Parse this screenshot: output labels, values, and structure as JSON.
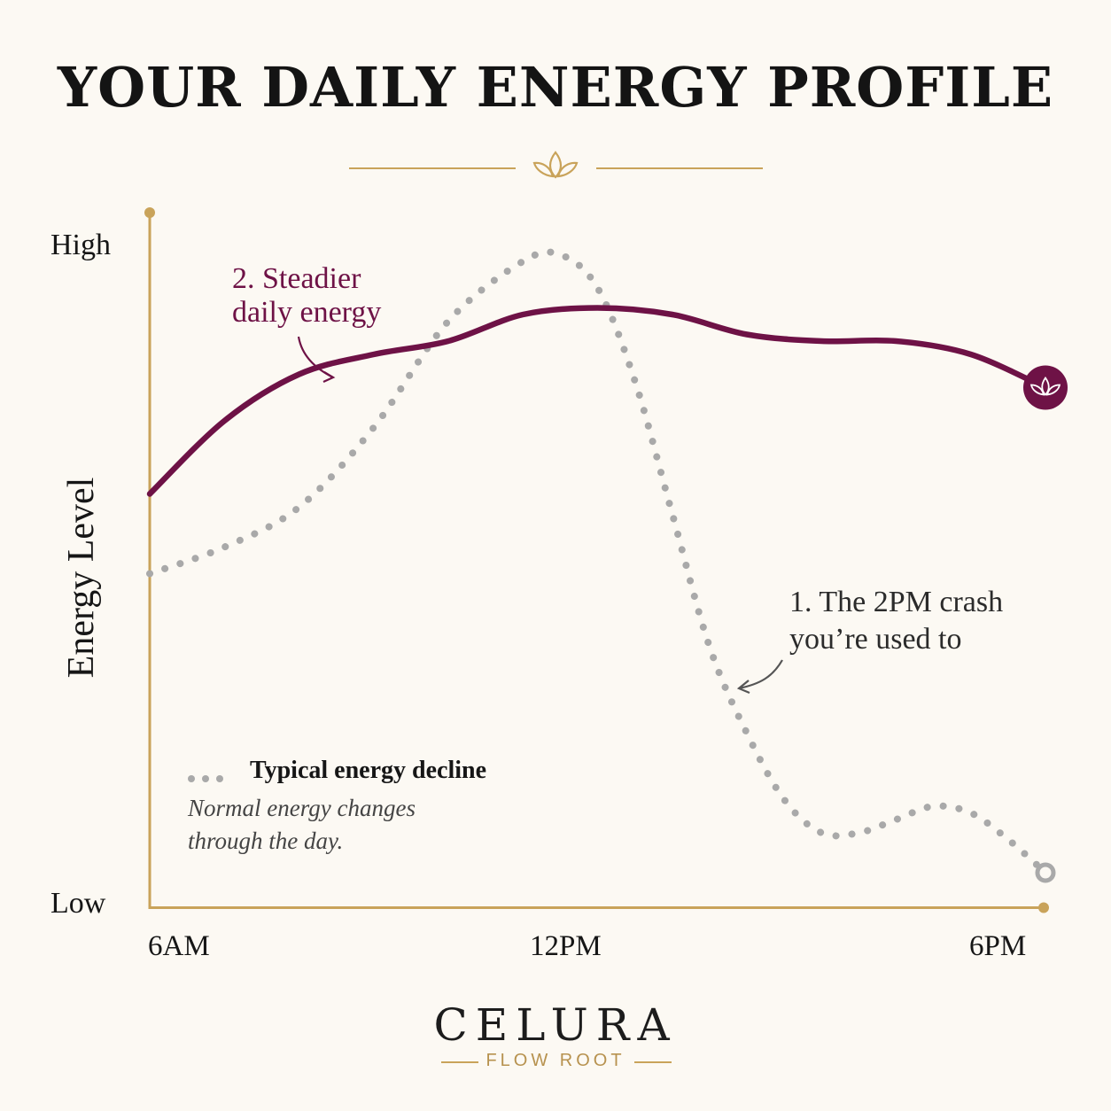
{
  "header": {
    "title": "YOUR DAILY ENERGY PROFILE",
    "ornament_icon": "lotus-icon"
  },
  "footer": {
    "brand": "CELURA",
    "sub_brand": "FLOW ROOT"
  },
  "colors": {
    "background": "#fcf9f3",
    "accent_gold": "#c9a35a",
    "steady_line": "#6e1246",
    "typical_line": "#a9a9a9",
    "text": "#161616"
  },
  "chart_data": {
    "type": "line",
    "title": "YOUR DAILY ENERGY PROFILE",
    "xlabel": "",
    "ylabel": "Energy Level",
    "x_ticks": [
      "6AM",
      "12PM",
      "6PM"
    ],
    "y_ticks": [
      "High",
      "Low"
    ],
    "xlim": [
      6,
      18
    ],
    "ylim": [
      0,
      100
    ],
    "grid": false,
    "legend": {
      "placement": "bottom-left",
      "label": "Typical energy decline",
      "description": "Normal energy changes through the day."
    },
    "series": [
      {
        "key": "steady",
        "style": "solid",
        "color": "#6e1246",
        "end_marker_icon": "lotus-icon",
        "x": [
          6,
          7,
          8,
          9,
          10,
          11,
          12,
          13,
          14,
          15,
          16,
          17,
          18
        ],
        "y": [
          59,
          70,
          77,
          80,
          82,
          86,
          87,
          86,
          83,
          82,
          82,
          80,
          75
        ]
      },
      {
        "key": "typical",
        "style": "dotted",
        "color": "#a9a9a9",
        "end_marker": "ring",
        "x": [
          6,
          7,
          8,
          9,
          10,
          11,
          11.5,
          12,
          12.5,
          13,
          13.5,
          14,
          14.5,
          15,
          15.5,
          16,
          16.5,
          17,
          17.5,
          18
        ],
        "y": [
          47,
          51,
          57,
          69,
          85,
          94,
          95,
          90,
          76,
          56,
          36,
          23,
          13,
          8,
          8,
          10,
          12,
          11,
          7,
          2
        ]
      }
    ],
    "annotations": [
      {
        "key": "steady",
        "text_line1": "2. Steadier",
        "text_line2": "daily energy"
      },
      {
        "key": "crash",
        "text_line1": "1. The 2PM crash",
        "text_line2": "you’re used to"
      }
    ],
    "axis_labels": {
      "high": "High",
      "low": "Low",
      "x_start": "6AM",
      "x_mid": "12PM",
      "x_end": "6PM"
    }
  }
}
